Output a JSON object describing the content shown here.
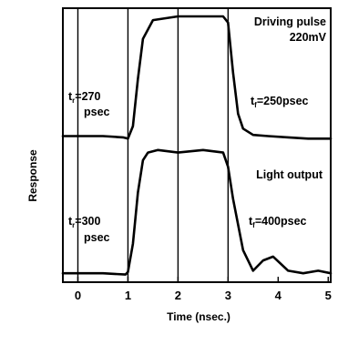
{
  "chart_data": {
    "type": "line",
    "title": "",
    "xlabel": "Time (nsec.)",
    "ylabel": "Response",
    "xlim": [
      -0.3,
      5.05
    ],
    "xticks": [
      "0",
      "1",
      "2",
      "3",
      "4",
      "5"
    ],
    "grid": "vertical lines at x = 0, 1, 2, 3",
    "series": [
      {
        "name": "Driving pulse",
        "x": [
          -0.3,
          0.5,
          0.9,
          1.0,
          1.1,
          1.2,
          1.3,
          1.5,
          2.0,
          2.5,
          2.9,
          3.0,
          3.1,
          3.2,
          3.3,
          3.5,
          3.8,
          4.2,
          4.6,
          5.05
        ],
        "y": [
          0.04,
          0.04,
          0.03,
          0.02,
          0.12,
          0.5,
          0.82,
          0.97,
          1.0,
          1.0,
          1.0,
          0.95,
          0.55,
          0.22,
          0.1,
          0.05,
          0.04,
          0.03,
          0.02,
          0.02
        ]
      },
      {
        "name": "Light output",
        "x": [
          -0.3,
          0.5,
          0.95,
          1.0,
          1.1,
          1.2,
          1.3,
          1.4,
          1.6,
          2.0,
          2.5,
          2.9,
          3.0,
          3.1,
          3.3,
          3.5,
          3.7,
          3.9,
          4.2,
          4.5,
          4.8,
          5.05
        ],
        "y": [
          0.02,
          0.02,
          0.01,
          0.03,
          0.25,
          0.65,
          0.9,
          0.96,
          0.98,
          0.96,
          0.98,
          0.96,
          0.85,
          0.6,
          0.2,
          0.04,
          0.12,
          0.15,
          0.04,
          0.02,
          0.04,
          0.02
        ]
      }
    ],
    "annotations": [
      "Driving pulse",
      "220mV",
      "t_f=250psec",
      "t_r=270",
      "psec",
      "Light output",
      "t_f=400psec",
      "t_r=300",
      "psec"
    ]
  },
  "labels": {
    "driving_pulse": "Driving pulse",
    "voltage": "220mV",
    "tf_top": "=250psec",
    "tr_top_value": "=270",
    "tr_top_unit": "psec",
    "light_output": "Light output",
    "tf_bottom": "=400psec",
    "tr_bottom_value": "=300",
    "tr_bottom_unit": "psec",
    "t_letter": "t",
    "sub_r": "r",
    "sub_f": "f"
  }
}
